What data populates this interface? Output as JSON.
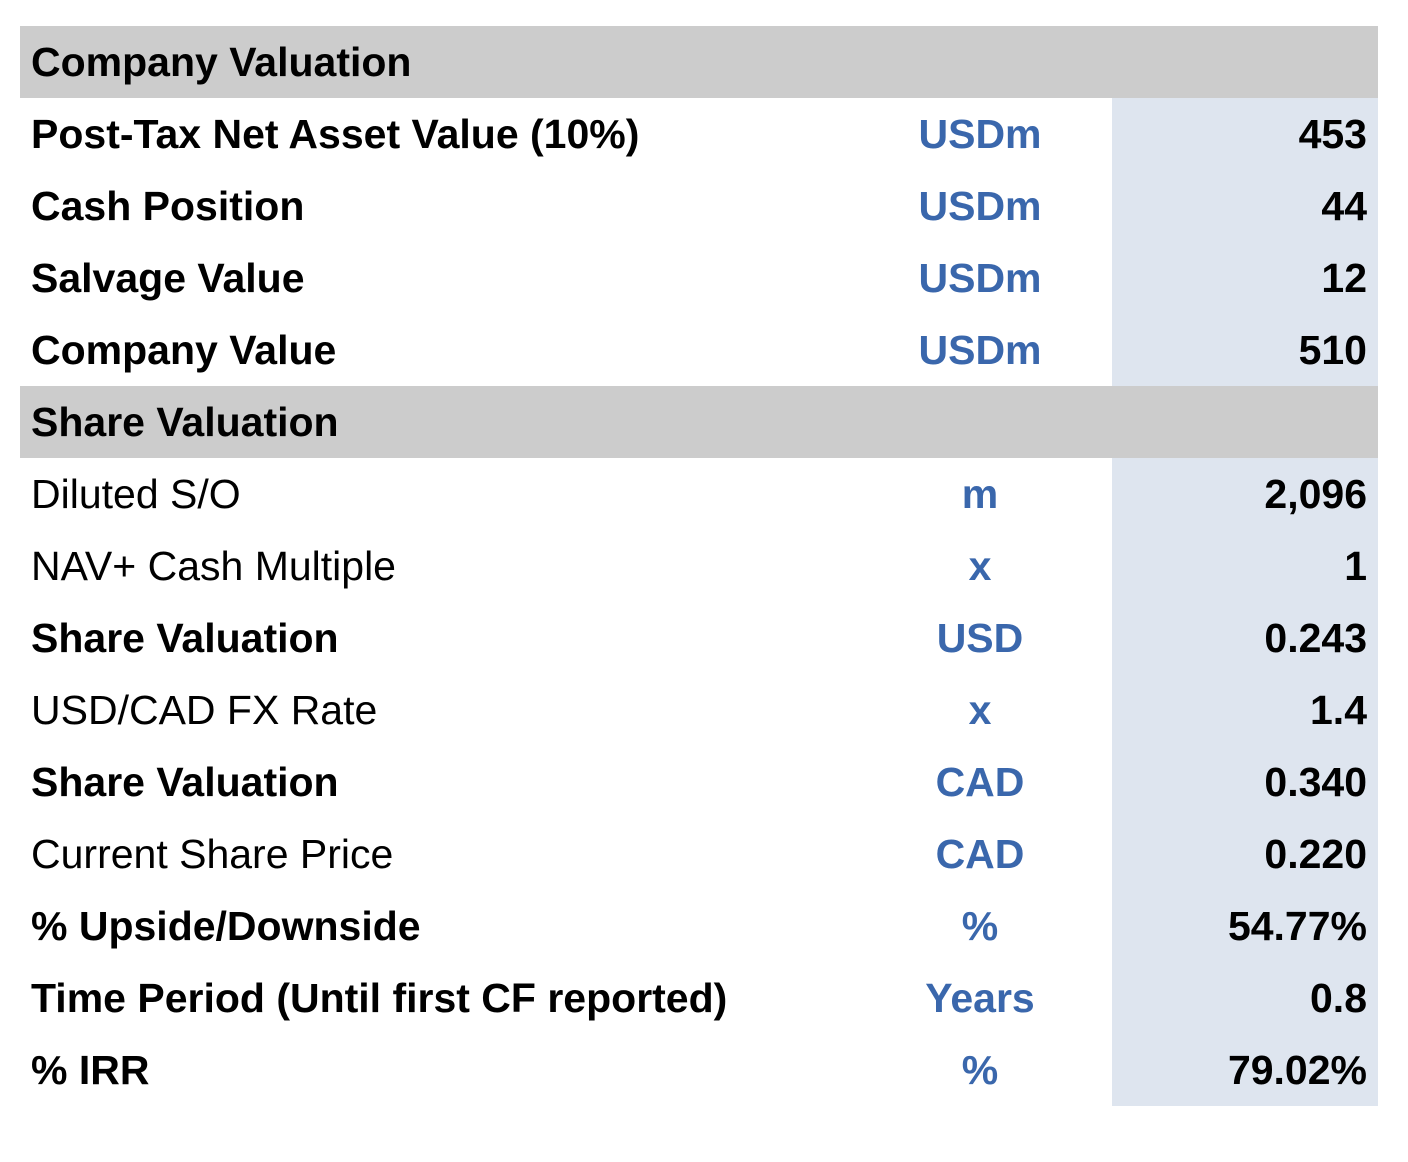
{
  "sections": [
    {
      "title": "Company Valuation",
      "rows": [
        {
          "label": "Post-Tax Net Asset Value (10%)",
          "unit": "USDm",
          "value": "453",
          "bold": true
        },
        {
          "label": "Cash Position",
          "unit": "USDm",
          "value": "44",
          "bold": true
        },
        {
          "label": "Salvage Value",
          "unit": "USDm",
          "value": "12",
          "bold": true
        },
        {
          "label": "Company Value",
          "unit": "USDm",
          "value": "510",
          "bold": true
        }
      ]
    },
    {
      "title": "Share Valuation",
      "rows": [
        {
          "label": "Diluted S/O",
          "unit": "m",
          "value": "2,096",
          "bold": false
        },
        {
          "label": "NAV+ Cash Multiple",
          "unit": "x",
          "value": "1",
          "bold": false
        },
        {
          "label": "Share Valuation",
          "unit": "USD",
          "value": "0.243",
          "bold": true
        },
        {
          "label": "USD/CAD FX Rate",
          "unit": "x",
          "value": "1.4",
          "bold": false
        },
        {
          "label": "Share Valuation",
          "unit": "CAD",
          "value": "0.340",
          "bold": true
        },
        {
          "label": "Current Share Price",
          "unit": "CAD",
          "value": "0.220",
          "bold": false
        },
        {
          "label": "% Upside/Downside",
          "unit": "%",
          "value": "54.77%",
          "bold": true
        },
        {
          "label": "Time Period (Until first CF reported)",
          "unit": "Years",
          "value": "0.8",
          "bold": true
        },
        {
          "label": "% IRR",
          "unit": "%",
          "value": "79.02%",
          "bold": true
        }
      ]
    }
  ],
  "colors": {
    "header_bg": "#cccccc",
    "unit_text": "#3a67ac",
    "value_bg": "#dee5ef"
  }
}
